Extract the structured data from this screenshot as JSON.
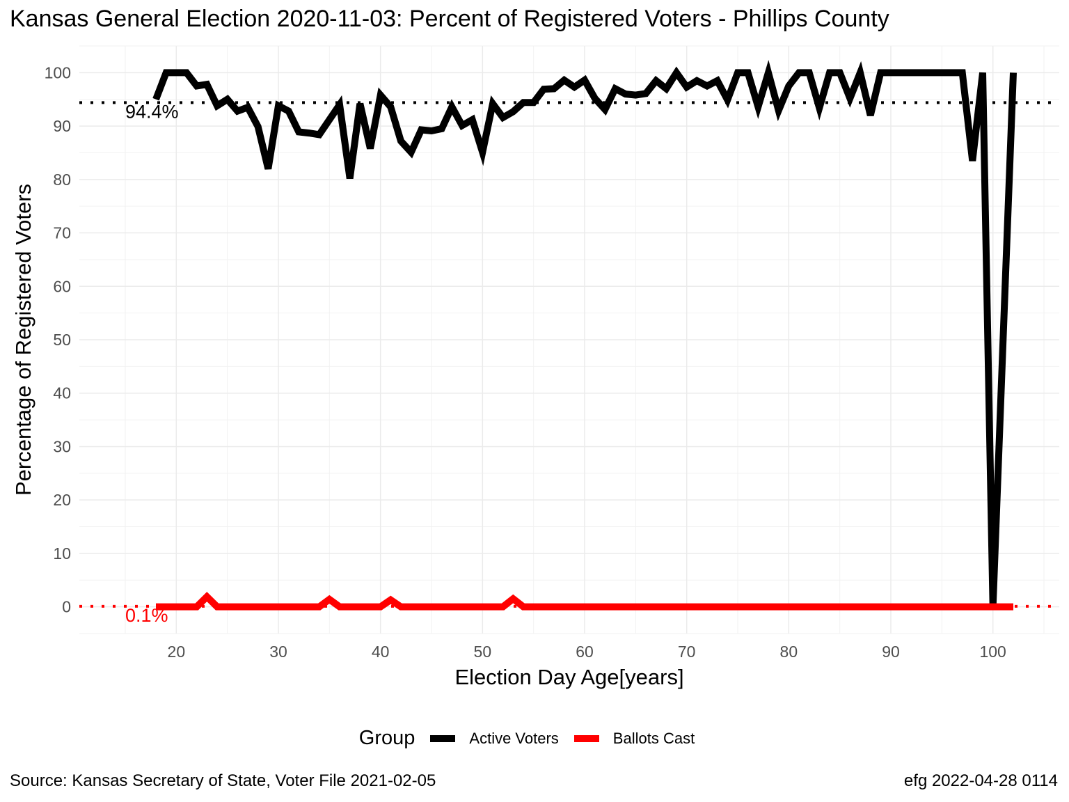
{
  "chart_data": {
    "type": "line",
    "title": "Kansas General Election 2020-11-03:  Percent of Registered Voters - Phillips County",
    "xlabel": "Election Day Age[years]",
    "ylabel": "Percentage of Registered Voters",
    "xlim": [
      10.5,
      106.5
    ],
    "ylim": [
      -5,
      105
    ],
    "x_ticks": [
      20,
      30,
      40,
      50,
      60,
      70,
      80,
      90,
      100
    ],
    "y_ticks": [
      0,
      10,
      20,
      30,
      40,
      50,
      60,
      70,
      80,
      90,
      100
    ],
    "grid": true,
    "legend": {
      "title": "Group",
      "position": "bottom",
      "entries": [
        "Active Voters",
        "Ballots Cast"
      ]
    },
    "series": [
      {
        "name": "Active Voters",
        "color": "#000000",
        "x": [
          18,
          19,
          20,
          21,
          22,
          23,
          24,
          25,
          26,
          27,
          28,
          29,
          30,
          31,
          32,
          33,
          34,
          35,
          36,
          37,
          38,
          39,
          40,
          41,
          42,
          43,
          44,
          45,
          46,
          47,
          48,
          49,
          50,
          51,
          52,
          53,
          54,
          55,
          56,
          57,
          58,
          59,
          60,
          61,
          62,
          63,
          64,
          65,
          66,
          67,
          68,
          69,
          70,
          71,
          72,
          73,
          74,
          75,
          76,
          77,
          78,
          79,
          80,
          81,
          82,
          83,
          84,
          85,
          86,
          87,
          88,
          89,
          90,
          91,
          92,
          93,
          94,
          95,
          96,
          97,
          98,
          99,
          100,
          101,
          102
        ],
        "y": [
          95,
          100,
          100,
          100,
          97.5,
          97.8,
          93.8,
          95,
          92.8,
          93.5,
          89.9,
          82,
          93.8,
          92.8,
          88.9,
          88.7,
          88.4,
          91.2,
          94,
          80.2,
          94.2,
          85.8,
          95.8,
          93.6,
          87.2,
          85.1,
          89.3,
          89.1,
          89.5,
          93.6,
          90.1,
          91.2,
          85.1,
          94.2,
          91.6,
          92.7,
          94.4,
          94.4,
          96.9,
          97,
          98.6,
          97.3,
          98.6,
          95.2,
          93.1,
          97,
          96,
          95.8,
          96.1,
          98.5,
          97,
          100,
          97.3,
          98.5,
          97.5,
          98.5,
          94.9,
          100,
          100,
          93.6,
          100,
          92.9,
          97.5,
          100,
          100,
          93.4,
          100,
          100,
          95.2,
          100,
          92,
          100,
          100,
          100,
          100,
          100,
          100,
          100,
          100,
          100,
          83.5,
          100,
          0,
          50,
          100
        ]
      },
      {
        "name": "Ballots Cast",
        "color": "#ff0000",
        "x": [
          18,
          19,
          20,
          21,
          22,
          23,
          24,
          25,
          26,
          27,
          28,
          29,
          30,
          31,
          32,
          33,
          34,
          35,
          36,
          37,
          38,
          39,
          40,
          41,
          42,
          43,
          44,
          45,
          46,
          47,
          48,
          49,
          50,
          51,
          52,
          53,
          54,
          55,
          56,
          57,
          58,
          59,
          60,
          61,
          62,
          63,
          64,
          65,
          66,
          67,
          68,
          69,
          70,
          71,
          72,
          73,
          74,
          75,
          76,
          77,
          78,
          79,
          80,
          81,
          82,
          83,
          84,
          85,
          86,
          87,
          88,
          89,
          90,
          91,
          92,
          93,
          94,
          95,
          96,
          97,
          98,
          99,
          100,
          101,
          102
        ],
        "y": [
          0,
          0,
          0,
          0,
          0,
          1.9,
          0,
          0,
          0,
          0,
          0,
          0,
          0,
          0,
          0,
          0,
          0,
          1.4,
          0,
          0,
          0,
          0,
          0,
          1.3,
          0,
          0,
          0,
          0,
          0,
          0,
          0,
          0,
          0,
          0,
          0,
          1.5,
          0,
          0,
          0,
          0,
          0,
          0,
          0,
          0,
          0,
          0,
          0,
          0,
          0,
          0,
          0,
          0,
          0,
          0,
          0,
          0,
          0,
          0,
          0,
          0,
          0,
          0,
          0,
          0,
          0,
          0,
          0,
          0,
          0,
          0,
          0,
          0,
          0,
          0,
          0,
          0,
          0,
          0,
          0,
          0,
          0,
          0,
          0,
          0,
          0
        ]
      }
    ],
    "reference_lines": [
      {
        "series": "Active Voters",
        "y": 94.4,
        "label": "94.4%",
        "color": "#000000",
        "style": "dotted"
      },
      {
        "series": "Ballots Cast",
        "y": 0.1,
        "label": "0.1%",
        "color": "#ff0000",
        "style": "dotted"
      }
    ]
  },
  "footer": {
    "source": "Source:  Kansas Secretary of State, Voter File  2021-02-05",
    "credit": "efg 2022-04-28 0114"
  }
}
